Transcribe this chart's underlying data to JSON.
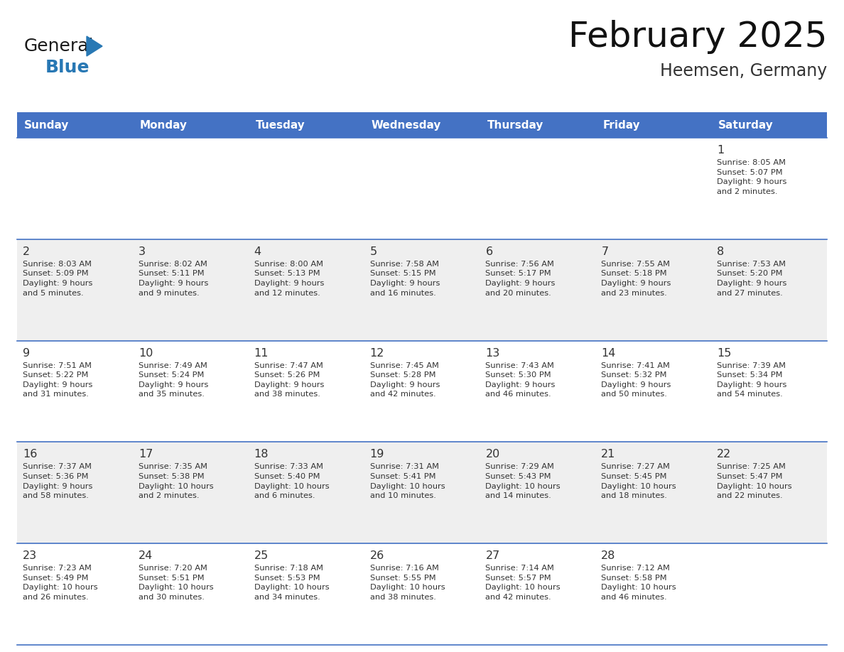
{
  "title": "February 2025",
  "subtitle": "Heemsen, Germany",
  "header_bg": "#4472C4",
  "header_text_color": "#FFFFFF",
  "day_names": [
    "Sunday",
    "Monday",
    "Tuesday",
    "Wednesday",
    "Thursday",
    "Friday",
    "Saturday"
  ],
  "cell_bg_odd": "#EFEFEF",
  "cell_bg_even": "#FFFFFF",
  "cell_border_color": "#4472C4",
  "day_num_color": "#333333",
  "info_text_color": "#333333",
  "logo_general_color": "#1a1a1a",
  "logo_blue_color": "#2878B4",
  "weeks": [
    [
      {
        "day": null,
        "info": null
      },
      {
        "day": null,
        "info": null
      },
      {
        "day": null,
        "info": null
      },
      {
        "day": null,
        "info": null
      },
      {
        "day": null,
        "info": null
      },
      {
        "day": null,
        "info": null
      },
      {
        "day": 1,
        "info": "Sunrise: 8:05 AM\nSunset: 5:07 PM\nDaylight: 9 hours\nand 2 minutes."
      }
    ],
    [
      {
        "day": 2,
        "info": "Sunrise: 8:03 AM\nSunset: 5:09 PM\nDaylight: 9 hours\nand 5 minutes."
      },
      {
        "day": 3,
        "info": "Sunrise: 8:02 AM\nSunset: 5:11 PM\nDaylight: 9 hours\nand 9 minutes."
      },
      {
        "day": 4,
        "info": "Sunrise: 8:00 AM\nSunset: 5:13 PM\nDaylight: 9 hours\nand 12 minutes."
      },
      {
        "day": 5,
        "info": "Sunrise: 7:58 AM\nSunset: 5:15 PM\nDaylight: 9 hours\nand 16 minutes."
      },
      {
        "day": 6,
        "info": "Sunrise: 7:56 AM\nSunset: 5:17 PM\nDaylight: 9 hours\nand 20 minutes."
      },
      {
        "day": 7,
        "info": "Sunrise: 7:55 AM\nSunset: 5:18 PM\nDaylight: 9 hours\nand 23 minutes."
      },
      {
        "day": 8,
        "info": "Sunrise: 7:53 AM\nSunset: 5:20 PM\nDaylight: 9 hours\nand 27 minutes."
      }
    ],
    [
      {
        "day": 9,
        "info": "Sunrise: 7:51 AM\nSunset: 5:22 PM\nDaylight: 9 hours\nand 31 minutes."
      },
      {
        "day": 10,
        "info": "Sunrise: 7:49 AM\nSunset: 5:24 PM\nDaylight: 9 hours\nand 35 minutes."
      },
      {
        "day": 11,
        "info": "Sunrise: 7:47 AM\nSunset: 5:26 PM\nDaylight: 9 hours\nand 38 minutes."
      },
      {
        "day": 12,
        "info": "Sunrise: 7:45 AM\nSunset: 5:28 PM\nDaylight: 9 hours\nand 42 minutes."
      },
      {
        "day": 13,
        "info": "Sunrise: 7:43 AM\nSunset: 5:30 PM\nDaylight: 9 hours\nand 46 minutes."
      },
      {
        "day": 14,
        "info": "Sunrise: 7:41 AM\nSunset: 5:32 PM\nDaylight: 9 hours\nand 50 minutes."
      },
      {
        "day": 15,
        "info": "Sunrise: 7:39 AM\nSunset: 5:34 PM\nDaylight: 9 hours\nand 54 minutes."
      }
    ],
    [
      {
        "day": 16,
        "info": "Sunrise: 7:37 AM\nSunset: 5:36 PM\nDaylight: 9 hours\nand 58 minutes."
      },
      {
        "day": 17,
        "info": "Sunrise: 7:35 AM\nSunset: 5:38 PM\nDaylight: 10 hours\nand 2 minutes."
      },
      {
        "day": 18,
        "info": "Sunrise: 7:33 AM\nSunset: 5:40 PM\nDaylight: 10 hours\nand 6 minutes."
      },
      {
        "day": 19,
        "info": "Sunrise: 7:31 AM\nSunset: 5:41 PM\nDaylight: 10 hours\nand 10 minutes."
      },
      {
        "day": 20,
        "info": "Sunrise: 7:29 AM\nSunset: 5:43 PM\nDaylight: 10 hours\nand 14 minutes."
      },
      {
        "day": 21,
        "info": "Sunrise: 7:27 AM\nSunset: 5:45 PM\nDaylight: 10 hours\nand 18 minutes."
      },
      {
        "day": 22,
        "info": "Sunrise: 7:25 AM\nSunset: 5:47 PM\nDaylight: 10 hours\nand 22 minutes."
      }
    ],
    [
      {
        "day": 23,
        "info": "Sunrise: 7:23 AM\nSunset: 5:49 PM\nDaylight: 10 hours\nand 26 minutes."
      },
      {
        "day": 24,
        "info": "Sunrise: 7:20 AM\nSunset: 5:51 PM\nDaylight: 10 hours\nand 30 minutes."
      },
      {
        "day": 25,
        "info": "Sunrise: 7:18 AM\nSunset: 5:53 PM\nDaylight: 10 hours\nand 34 minutes."
      },
      {
        "day": 26,
        "info": "Sunrise: 7:16 AM\nSunset: 5:55 PM\nDaylight: 10 hours\nand 38 minutes."
      },
      {
        "day": 27,
        "info": "Sunrise: 7:14 AM\nSunset: 5:57 PM\nDaylight: 10 hours\nand 42 minutes."
      },
      {
        "day": 28,
        "info": "Sunrise: 7:12 AM\nSunset: 5:58 PM\nDaylight: 10 hours\nand 46 minutes."
      },
      {
        "day": null,
        "info": null
      }
    ]
  ]
}
